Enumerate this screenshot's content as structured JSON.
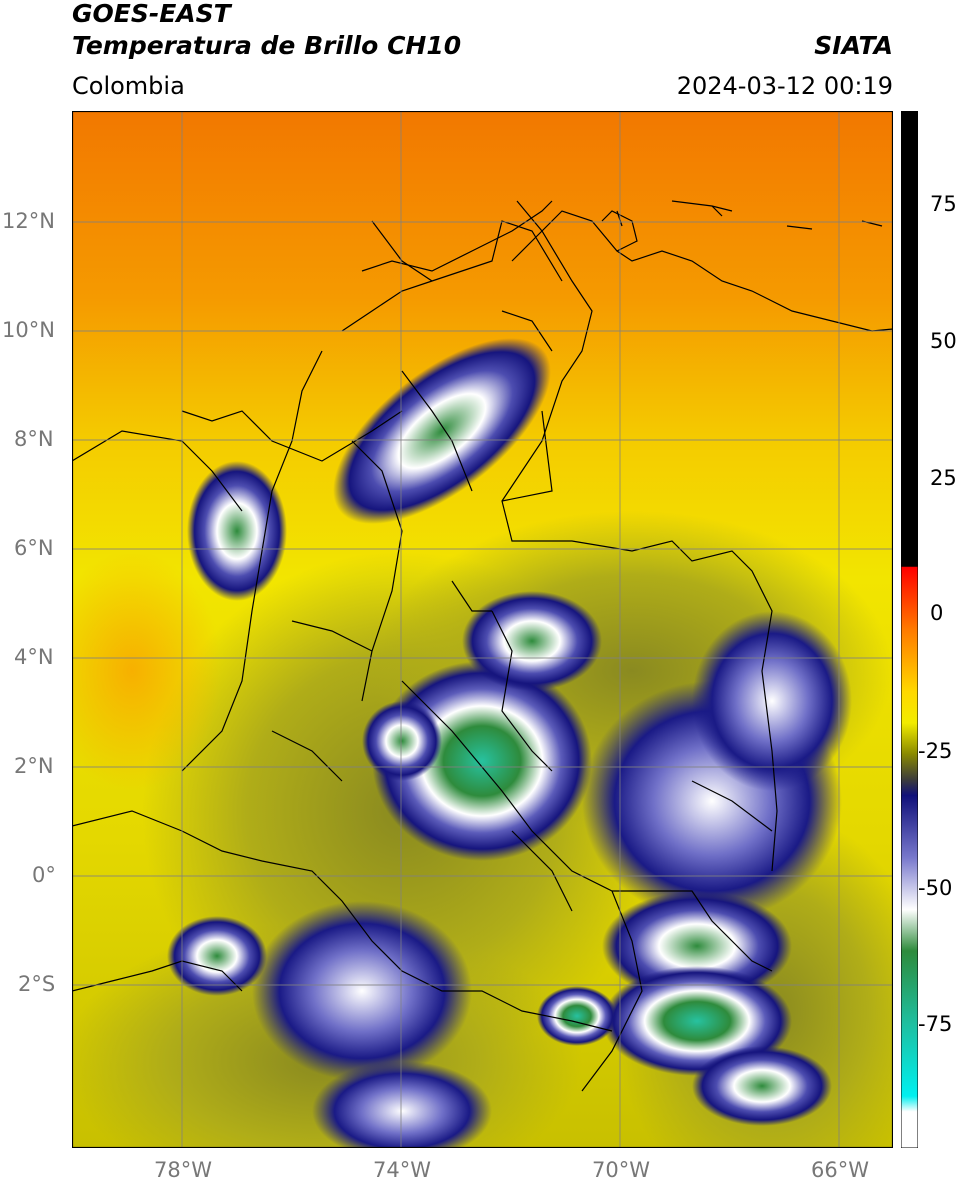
{
  "header": {
    "title_line1": "GOES-EAST",
    "title_line2": "Temperatura de Brillo CH10",
    "source": "SIATA",
    "region": "Colombia",
    "timestamp": "2024-03-12 00:19"
  },
  "map": {
    "lat_labels": [
      "12°N",
      "10°N",
      "8°N",
      "6°N",
      "4°N",
      "2°N",
      "0°",
      "2°S"
    ],
    "lon_labels": [
      "78°W",
      "74°W",
      "70°W",
      "66°W"
    ],
    "lon_range": [
      -80,
      -65
    ],
    "lat_range": [
      -5,
      14
    ],
    "colors": {
      "ocean_north": "#f07a00",
      "warm_land": "#f4e800",
      "mid_cloud": "#1a1a8a",
      "cold_cloud": "#ffffff",
      "very_cold": "#2b8a3a",
      "coldest": "#20c0a0",
      "border": "#000000",
      "gridline": "#808080"
    }
  },
  "colorbar": {
    "labels": [
      "75",
      "50",
      "25",
      "0",
      "-25",
      "-50",
      "-75"
    ],
    "values": [
      75,
      50,
      25,
      0,
      -25,
      -50,
      -75
    ],
    "range": [
      -97,
      90
    ]
  }
}
